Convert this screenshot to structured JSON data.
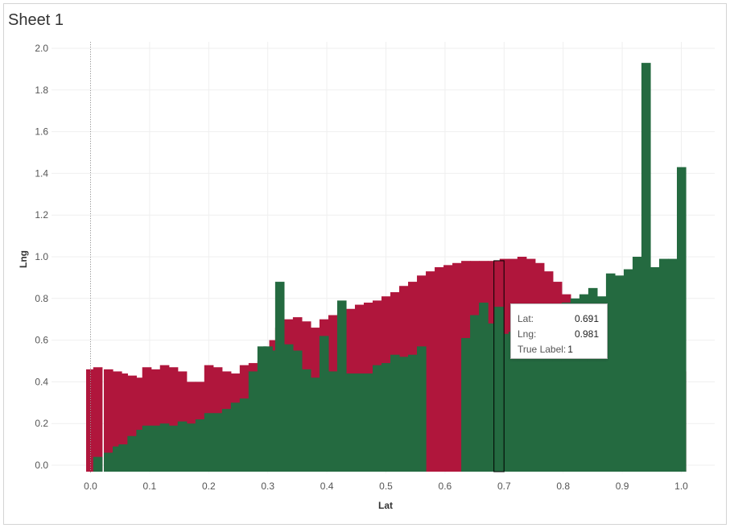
{
  "sheet": {
    "title": "Sheet 1"
  },
  "colors": {
    "red": "#b0163c",
    "green": "#246a40",
    "highlight": "#000000"
  },
  "chart_data": {
    "type": "bar",
    "xlabel": "Lat",
    "ylabel": "Lng",
    "xlim": [
      -0.06,
      1.04
    ],
    "ylim": [
      -0.03,
      2.0
    ],
    "xticks": [
      "0.0",
      "0.1",
      "0.2",
      "0.3",
      "0.4",
      "0.5",
      "0.6",
      "0.7",
      "0.8",
      "0.9",
      "1.0"
    ],
    "yticks": [
      "0.0",
      "0.2",
      "0.4",
      "0.6",
      "0.8",
      "1.0",
      "1.2",
      "1.4",
      "1.6",
      "1.8",
      "2.0"
    ],
    "grid": true,
    "series": [
      {
        "color": "red",
        "points": [
          [
            0.0,
            0.46
          ],
          [
            0.012,
            0.47
          ],
          [
            0.03,
            0.46
          ],
          [
            0.045,
            0.45
          ],
          [
            0.055,
            0.44
          ],
          [
            0.07,
            0.43
          ],
          [
            0.085,
            0.42
          ],
          [
            0.095,
            0.47
          ],
          [
            0.11,
            0.46
          ],
          [
            0.125,
            0.48
          ],
          [
            0.14,
            0.47
          ],
          [
            0.155,
            0.45
          ],
          [
            0.17,
            0.4
          ],
          [
            0.185,
            0.4
          ],
          [
            0.2,
            0.48
          ],
          [
            0.215,
            0.47
          ],
          [
            0.23,
            0.45
          ],
          [
            0.245,
            0.44
          ],
          [
            0.26,
            0.48
          ],
          [
            0.275,
            0.49
          ],
          [
            0.29,
            0.5
          ],
          [
            0.3,
            0.53
          ],
          [
            0.31,
            0.6
          ],
          [
            0.32,
            0.66
          ],
          [
            0.335,
            0.7
          ],
          [
            0.35,
            0.71
          ],
          [
            0.365,
            0.69
          ],
          [
            0.38,
            0.66
          ],
          [
            0.395,
            0.7
          ],
          [
            0.41,
            0.72
          ],
          [
            0.425,
            0.73
          ],
          [
            0.44,
            0.75
          ],
          [
            0.455,
            0.77
          ],
          [
            0.47,
            0.78
          ],
          [
            0.485,
            0.79
          ],
          [
            0.5,
            0.81
          ],
          [
            0.515,
            0.83
          ],
          [
            0.53,
            0.86
          ],
          [
            0.545,
            0.88
          ],
          [
            0.56,
            0.91
          ],
          [
            0.575,
            0.93
          ],
          [
            0.59,
            0.95
          ],
          [
            0.605,
            0.96
          ],
          [
            0.62,
            0.97
          ],
          [
            0.635,
            0.98
          ],
          [
            0.65,
            0.98
          ],
          [
            0.665,
            0.98
          ],
          [
            0.68,
            0.98
          ],
          [
            0.691,
            0.98
          ],
          [
            0.7,
            0.99
          ],
          [
            0.715,
            0.99
          ],
          [
            0.73,
            1.0
          ],
          [
            0.745,
            0.99
          ],
          [
            0.76,
            0.97
          ],
          [
            0.775,
            0.93
          ],
          [
            0.79,
            0.88
          ],
          [
            0.805,
            0.82
          ],
          [
            0.82,
            0.76
          ],
          [
            0.835,
            0.71
          ],
          [
            0.85,
            0.67
          ],
          [
            0.865,
            0.65
          ],
          [
            0.88,
            0.64
          ],
          [
            0.895,
            0.64
          ],
          [
            0.91,
            0.63
          ],
          [
            0.925,
            0.62
          ],
          [
            0.94,
            0.61
          ],
          [
            0.955,
            0.6
          ],
          [
            0.97,
            0.58
          ],
          [
            0.985,
            0.55
          ],
          [
            1.0,
            0.45
          ]
        ]
      },
      {
        "color": "green",
        "points": [
          [
            0.0,
            0.0
          ],
          [
            0.012,
            0.04
          ],
          [
            0.03,
            0.06
          ],
          [
            0.045,
            0.09
          ],
          [
            0.055,
            0.1
          ],
          [
            0.07,
            0.14
          ],
          [
            0.085,
            0.17
          ],
          [
            0.095,
            0.19
          ],
          [
            0.11,
            0.19
          ],
          [
            0.125,
            0.2
          ],
          [
            0.14,
            0.19
          ],
          [
            0.155,
            0.21
          ],
          [
            0.17,
            0.2
          ],
          [
            0.185,
            0.22
          ],
          [
            0.2,
            0.25
          ],
          [
            0.215,
            0.25
          ],
          [
            0.23,
            0.27
          ],
          [
            0.245,
            0.3
          ],
          [
            0.26,
            0.32
          ],
          [
            0.275,
            0.45
          ],
          [
            0.29,
            0.57
          ],
          [
            0.3,
            0.57
          ],
          [
            0.31,
            0.55
          ],
          [
            0.32,
            0.88
          ],
          [
            0.335,
            0.58
          ],
          [
            0.35,
            0.55
          ],
          [
            0.365,
            0.46
          ],
          [
            0.38,
            0.42
          ],
          [
            0.395,
            0.62
          ],
          [
            0.41,
            0.45
          ],
          [
            0.425,
            0.79
          ],
          [
            0.44,
            0.44
          ],
          [
            0.455,
            0.44
          ],
          [
            0.47,
            0.44
          ],
          [
            0.485,
            0.48
          ],
          [
            0.5,
            0.49
          ],
          [
            0.515,
            0.53
          ],
          [
            0.53,
            0.52
          ],
          [
            0.545,
            0.53
          ],
          [
            0.56,
            0.57
          ],
          [
            0.575,
            0.0
          ],
          [
            0.59,
            0.0
          ],
          [
            0.605,
            0.0
          ],
          [
            0.62,
            0.0
          ],
          [
            0.635,
            0.61
          ],
          [
            0.65,
            0.72
          ],
          [
            0.665,
            0.78
          ],
          [
            0.68,
            0.68
          ],
          [
            0.691,
            0.76
          ],
          [
            0.7,
            0.63
          ],
          [
            0.715,
            0.64
          ],
          [
            0.73,
            0.65
          ],
          [
            0.745,
            0.67
          ],
          [
            0.76,
            0.69
          ],
          [
            0.775,
            0.71
          ],
          [
            0.79,
            0.75
          ],
          [
            0.805,
            0.78
          ],
          [
            0.82,
            0.8
          ],
          [
            0.835,
            0.82
          ],
          [
            0.85,
            0.85
          ],
          [
            0.865,
            0.81
          ],
          [
            0.88,
            0.92
          ],
          [
            0.895,
            0.91
          ],
          [
            0.91,
            0.94
          ],
          [
            0.925,
            1.0
          ],
          [
            0.94,
            1.93
          ],
          [
            0.955,
            0.95
          ],
          [
            0.97,
            0.99
          ],
          [
            0.985,
            0.99
          ],
          [
            1.0,
            1.43
          ]
        ]
      }
    ],
    "highlight_lat": 0.691,
    "tooltip": {
      "lat_key": "Lat:",
      "lat_val": "0.691",
      "lng_key": "Lng:",
      "lng_val": "0.981",
      "label_key": "True Label:",
      "label_val": "1"
    }
  }
}
